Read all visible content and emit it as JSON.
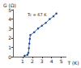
{
  "chart_data": {
    "type": "line",
    "x_label": "T (K)",
    "y_label": "G (Ω)",
    "annotation": "Tc = 67 K",
    "x": [
      1.2,
      1.5,
      1.6,
      1.65,
      1.7,
      1.75,
      1.8,
      2.2,
      2.6,
      3.0,
      3.4,
      3.8,
      4.2,
      4.5
    ],
    "values": [
      0.1,
      0.2,
      0.4,
      0.9,
      1.4,
      1.9,
      2.3,
      2.6,
      3.0,
      3.3,
      3.6,
      4.0,
      4.3,
      4.6
    ],
    "color": "#1f4e9c",
    "marker": "circle",
    "xlim": [
      0,
      5.5
    ],
    "xticks": [
      1,
      2,
      3,
      4,
      5
    ],
    "ylim": [
      0,
      5
    ],
    "yticks": [
      0,
      1,
      2,
      3,
      4,
      5
    ],
    "grid": false
  }
}
